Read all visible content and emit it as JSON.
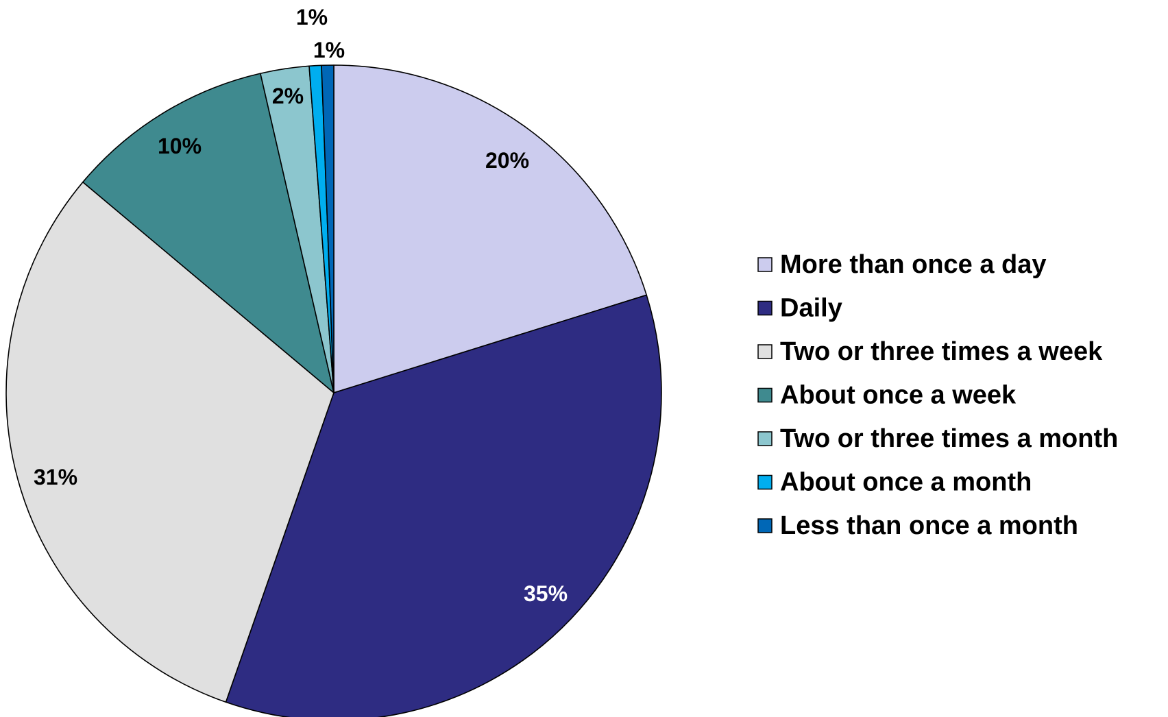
{
  "chart_data": {
    "type": "pie",
    "title": "",
    "start_angle_deg": 0,
    "direction": "clockwise",
    "legend_position": "right",
    "slices": [
      {
        "label": "More than once a day",
        "value": 20.2,
        "display": "20%",
        "color": "#CCCCEE",
        "label_color": "#000000"
      },
      {
        "label": "Daily",
        "value": 35.2,
        "display": "35%",
        "color": "#2E2C82",
        "label_color": "#FFFFFF"
      },
      {
        "label": "Two or three times a week",
        "value": 30.8,
        "display": "31%",
        "color": "#E0E0E0",
        "label_color": "#000000"
      },
      {
        "label": "About once a week",
        "value": 10.3,
        "display": "10%",
        "color": "#3F8A8F",
        "label_color": "#000000"
      },
      {
        "label": "Two or three times a month",
        "value": 2.4,
        "display": "2%",
        "color": "#8CC6CE",
        "label_color": "#000000"
      },
      {
        "label": "About once a month",
        "value": 0.6,
        "display": "1%",
        "color": "#00AEEF",
        "label_color": "#000000"
      },
      {
        "label": "Less than once a month",
        "value": 0.6,
        "display": "1%",
        "color": "#0067B6",
        "label_color": "#000000"
      }
    ]
  }
}
